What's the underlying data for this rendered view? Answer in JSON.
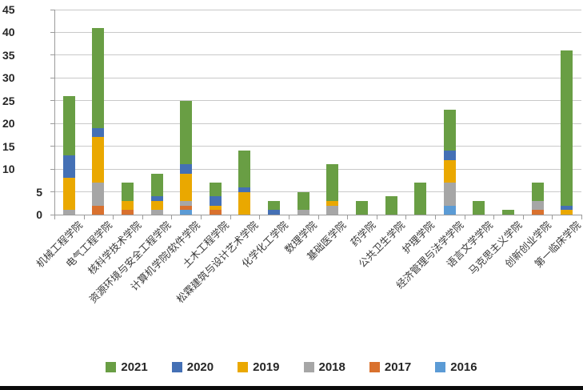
{
  "chart_data": {
    "type": "bar",
    "stacked": true,
    "title": "",
    "xlabel": "",
    "ylabel": "",
    "ylim": [
      0,
      45
    ],
    "y_ticks": [
      0,
      5,
      10,
      15,
      20,
      25,
      30,
      35,
      40,
      45
    ],
    "grid": true,
    "legend_position": "bottom",
    "legend_order": [
      "2021",
      "2020",
      "2019",
      "2018",
      "2017",
      "2016"
    ],
    "categories": [
      "机械工程学院",
      "电气工程学院",
      "核科学技术学院",
      "资源环境与安全工程学院",
      "计算机学院/软件学院",
      "土木工程学院",
      "松霖建筑与设计艺术学院",
      "化学化工学院",
      "数理学院",
      "基础医学院",
      "药学院",
      "公共卫生学院",
      "护理学院",
      "经济管理与法学学院",
      "语言文学学院",
      "马克思主义学院",
      "创新创业学院",
      "第一临床学院"
    ],
    "series": [
      {
        "name": "2016",
        "color": "#5b9bd5",
        "values": [
          0,
          0,
          0,
          0,
          1,
          0,
          0,
          0,
          0,
          0,
          0,
          0,
          0,
          2,
          0,
          0,
          0,
          0
        ]
      },
      {
        "name": "2017",
        "color": "#d9712e",
        "values": [
          0,
          2,
          1,
          0,
          1,
          1,
          0,
          0,
          0,
          0,
          0,
          0,
          0,
          0,
          0,
          0,
          1,
          0
        ]
      },
      {
        "name": "2018",
        "color": "#a6a6a6",
        "values": [
          1,
          5,
          0,
          1,
          1,
          0,
          0,
          0,
          1,
          2,
          0,
          0,
          0,
          5,
          0,
          0,
          2,
          0
        ]
      },
      {
        "name": "2019",
        "color": "#eaa800",
        "values": [
          7,
          10,
          2,
          2,
          6,
          1,
          5,
          0,
          0,
          1,
          0,
          0,
          0,
          5,
          0,
          0,
          0,
          1
        ]
      },
      {
        "name": "2020",
        "color": "#4470b5",
        "values": [
          5,
          2,
          0,
          1,
          2,
          2,
          1,
          1,
          0,
          0,
          0,
          0,
          0,
          2,
          0,
          0,
          0,
          1
        ]
      },
      {
        "name": "2021",
        "color": "#699e44",
        "values": [
          13,
          22,
          4,
          5,
          14,
          3,
          8,
          2,
          4,
          8,
          3,
          4,
          7,
          9,
          3,
          1,
          4,
          34
        ]
      }
    ]
  }
}
